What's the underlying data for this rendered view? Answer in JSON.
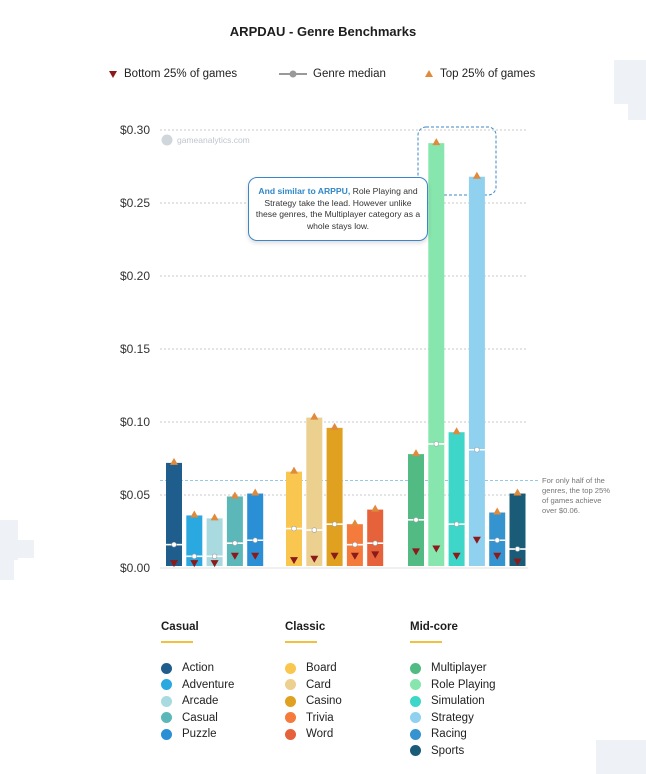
{
  "title": "ARPDAU - Genre Benchmarks",
  "legend": {
    "bottom": "Bottom 25% of games",
    "median": "Genre median",
    "top": "Top 25% of games"
  },
  "watermark": "gameanalytics.com",
  "callout": {
    "highlight": "And similar to ARPPU,",
    "text": " Role Playing and Strategy take the lead. However unlike these genres, the Multiplayer category as a whole stays low."
  },
  "note": "For only half of the genres, the top 25% of games achieve over $0.06.",
  "colors": {
    "axis_text": "#333333",
    "grid": "#b8b8b8",
    "bottom_marker": "#8b1a1a",
    "top_marker": "#e08a3c",
    "median_marker": "#ffffff",
    "callout_border": "#3a86c8",
    "note_line": "#6fb8e0"
  },
  "groups": [
    {
      "name": "Casual",
      "items": [
        {
          "label": "Action",
          "color": "#1f5e8c"
        },
        {
          "label": "Adventure",
          "color": "#2aa8e0"
        },
        {
          "label": "Arcade",
          "color": "#a8dadf"
        },
        {
          "label": "Casual",
          "color": "#5cb8b8"
        },
        {
          "label": "Puzzle",
          "color": "#2b8fd6"
        }
      ]
    },
    {
      "name": "Classic",
      "items": [
        {
          "label": "Board",
          "color": "#f9c74f"
        },
        {
          "label": "Card",
          "color": "#ecd08f"
        },
        {
          "label": "Casino",
          "color": "#e0a020"
        },
        {
          "label": "Trivia",
          "color": "#f47b3c"
        },
        {
          "label": "Word",
          "color": "#e5623a"
        }
      ]
    },
    {
      "name": "Mid-core",
      "items": [
        {
          "label": "Multiplayer",
          "color": "#52bb84"
        },
        {
          "label": "Role Playing",
          "color": "#86e6ad"
        },
        {
          "label": "Simulation",
          "color": "#3dd6c8"
        },
        {
          "label": "Strategy",
          "color": "#8fd1ee"
        },
        {
          "label": "Racing",
          "color": "#3593cf"
        },
        {
          "label": "Sports",
          "color": "#1a5c78"
        }
      ]
    }
  ],
  "chart_data": {
    "type": "bar",
    "title": "ARPDAU - Genre Benchmarks",
    "ylabel": "",
    "xlabel": "",
    "ylim": [
      0,
      0.3
    ],
    "yticks": [
      "$0.00",
      "$0.05",
      "$0.10",
      "$0.15",
      "$0.20",
      "$0.25",
      "$0.30"
    ],
    "grid": true,
    "legend_position": "top",
    "reference_line": 0.06,
    "bars": [
      {
        "genre": "Action",
        "group": "Casual",
        "bottom": 0.002,
        "median": 0.016,
        "top": 0.072
      },
      {
        "genre": "Adventure",
        "group": "Casual",
        "bottom": 0.002,
        "median": 0.008,
        "top": 0.036
      },
      {
        "genre": "Arcade",
        "group": "Casual",
        "bottom": 0.002,
        "median": 0.008,
        "top": 0.034
      },
      {
        "genre": "Casual",
        "group": "Casual",
        "bottom": 0.007,
        "median": 0.017,
        "top": 0.049
      },
      {
        "genre": "Puzzle",
        "group": "Casual",
        "bottom": 0.007,
        "median": 0.019,
        "top": 0.051
      },
      {
        "genre": "Board",
        "group": "Classic",
        "bottom": 0.004,
        "median": 0.027,
        "top": 0.066
      },
      {
        "genre": "Card",
        "group": "Classic",
        "bottom": 0.005,
        "median": 0.026,
        "top": 0.103
      },
      {
        "genre": "Casino",
        "group": "Classic",
        "bottom": 0.007,
        "median": 0.03,
        "top": 0.096
      },
      {
        "genre": "Trivia",
        "group": "Classic",
        "bottom": 0.007,
        "median": 0.016,
        "top": 0.03
      },
      {
        "genre": "Word",
        "group": "Classic",
        "bottom": 0.008,
        "median": 0.017,
        "top": 0.04
      },
      {
        "genre": "Multiplayer",
        "group": "Mid-core",
        "bottom": 0.01,
        "median": 0.033,
        "top": 0.078
      },
      {
        "genre": "Role Playing",
        "group": "Mid-core",
        "bottom": 0.012,
        "median": 0.085,
        "top": 0.291
      },
      {
        "genre": "Simulation",
        "group": "Mid-core",
        "bottom": 0.007,
        "median": 0.03,
        "top": 0.093
      },
      {
        "genre": "Strategy",
        "group": "Mid-core",
        "bottom": 0.018,
        "median": 0.081,
        "top": 0.268
      },
      {
        "genre": "Racing",
        "group": "Mid-core",
        "bottom": 0.007,
        "median": 0.019,
        "top": 0.038
      },
      {
        "genre": "Sports",
        "group": "Mid-core",
        "bottom": 0.003,
        "median": 0.013,
        "top": 0.051
      }
    ]
  }
}
